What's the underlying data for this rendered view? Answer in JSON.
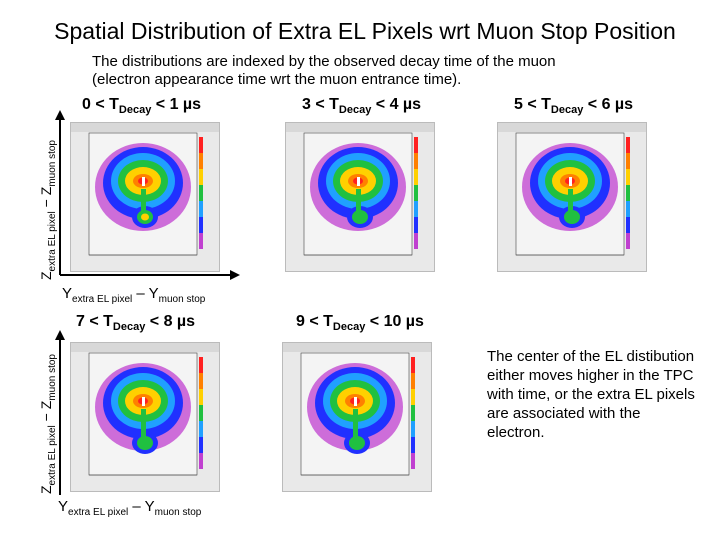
{
  "title": "Spatial Distribution of Extra EL Pixels wrt Muon Stop Position",
  "subtitle_line1": "The distributions are indexed by the observed decay time of the muon",
  "subtitle_line2": "(electron appearance time wrt the muon entrance time).",
  "y_axis_label": {
    "base": "Z",
    "sub": "extra EL pixel",
    "rest": " − Z",
    "sub2": "muon stop"
  },
  "x_axis_label": {
    "base": "Y",
    "sub": "extra EL pixel",
    "rest": " – Y",
    "sub2": "muon stop"
  },
  "panels": [
    {
      "pre": "0 < T",
      "sub": "Decay",
      "post": " < 1 µs"
    },
    {
      "pre": "3 < T",
      "sub": "Decay",
      "post": " < 4 µs"
    },
    {
      "pre": "5 < T",
      "sub": "Decay",
      "post": " < 6 µs"
    },
    {
      "pre": "7 < T",
      "sub": "Decay",
      "post": " < 8 µs"
    },
    {
      "pre": "9 < T",
      "sub": "Decay",
      "post": " < 10 µs"
    }
  ],
  "note": "The center of the EL distibution either moves higher in the TPC with time, or the extra EL pixels are associated with the electron.",
  "colors": {
    "background": "#e9e9e9",
    "high": "#ff2020",
    "mid": "#ffd000",
    "low": "#20c040",
    "lowest": "#2030ff",
    "outer": "#c040d0"
  }
}
